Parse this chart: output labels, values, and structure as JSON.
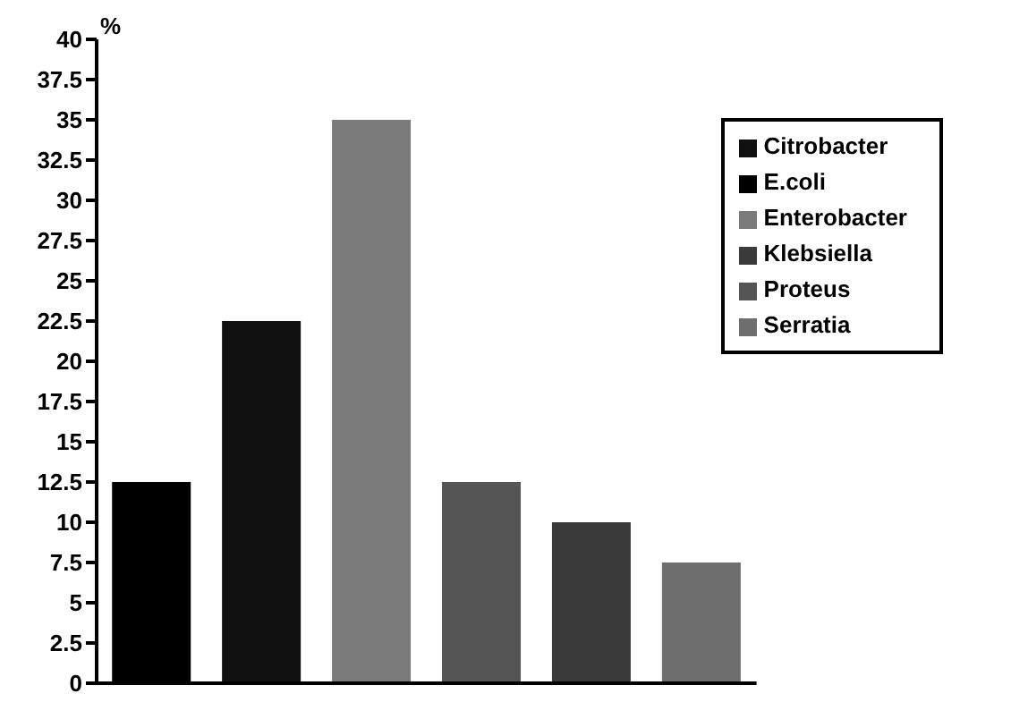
{
  "chart_data": {
    "type": "bar",
    "ylabel": "%",
    "categories": [
      null,
      null,
      null,
      null,
      null,
      null
    ],
    "stacked": true,
    "series": [
      {
        "name": "Serratia",
        "color": "#6e6e6e",
        "values": [
          null,
          null,
          null,
          null,
          null,
          7.5
        ]
      },
      {
        "name": "Klebsiella",
        "color": "#3a3a3a",
        "values": [
          null,
          null,
          null,
          null,
          10,
          null
        ]
      },
      {
        "name": "Proteus",
        "color": "#555555",
        "values": [
          null,
          null,
          null,
          12.5,
          null,
          null
        ]
      },
      {
        "name": "Enterobacter",
        "color": "#7a7a7a",
        "values": [
          null,
          null,
          35,
          null,
          null,
          null
        ]
      },
      {
        "name": "Citrobacter",
        "color": "#111111",
        "values": [
          null,
          22.5,
          null,
          null,
          null,
          null
        ]
      },
      {
        "name": "E.coli",
        "color": "#000000",
        "values": [
          12.5,
          null,
          null,
          null,
          null,
          null
        ]
      }
    ],
    "ylim": [
      0,
      40
    ],
    "yticks": [
      0,
      2.5,
      5,
      7.5,
      10,
      12.5,
      15,
      17.5,
      20,
      22.5,
      25,
      27.5,
      30,
      32.5,
      35,
      37.5,
      40
    ],
    "grid": false,
    "legend": "top right",
    "tick_labels": "y"
  }
}
